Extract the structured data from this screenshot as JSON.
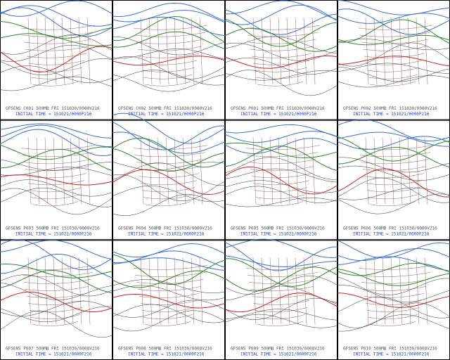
{
  "panels": [
    {
      "title": "GFSENS C001 500MB FRI 151030/0000V216",
      "initial_time": "INITIAL TIME = 151021/0000F216"
    },
    {
      "title": "GFSENS C002 500MB FRI 151030/0000V216",
      "initial_time": "INITIAL TIME = 151021/0000F216"
    },
    {
      "title": "GFSENS P001 500MB FRI 151030/0000V216",
      "initial_time": "INITIAL TIME = 151021/0000F216"
    },
    {
      "title": "GFSENS P002 500MB FRI 151030/0000V216",
      "initial_time": "INITIAL TIME = 151021/0000F216"
    },
    {
      "title": "GFSENS P003 500MB FRI 151030/0000V216",
      "initial_time": "INITIAL TIME = 151021/0000F216"
    },
    {
      "title": "GFSENS P004 500MB FRI 151030/0000V216",
      "initial_time": "INITIAL TIME = 151021/0000F216"
    },
    {
      "title": "GFSENS P005 500MB FRI 151030/0000V216",
      "initial_time": "INITIAL TIME = 151021/0000F216"
    },
    {
      "title": "GFSENS P006 500MB FRI 151030/0000V216",
      "initial_time": "INITIAL TIME = 151021/0000F216"
    },
    {
      "title": "GFSENS P007 500MB FRI 151030/0000V216",
      "initial_time": "INITIAL TIME = 151021/0000F216"
    },
    {
      "title": "GFSENS P008 500MB FRI 151030/0000V216",
      "initial_time": "INITIAL TIME = 151021/0000F216"
    },
    {
      "title": "GFSENS P009 500MB FRI 151030/0000V216",
      "initial_time": "INITIAL TIME = 151021/0000F216"
    },
    {
      "title": "GFSENS P010 500MB FRI 151030/0000V216",
      "initial_time": "INITIAL TIME = 151021/0000F216"
    }
  ]
}
